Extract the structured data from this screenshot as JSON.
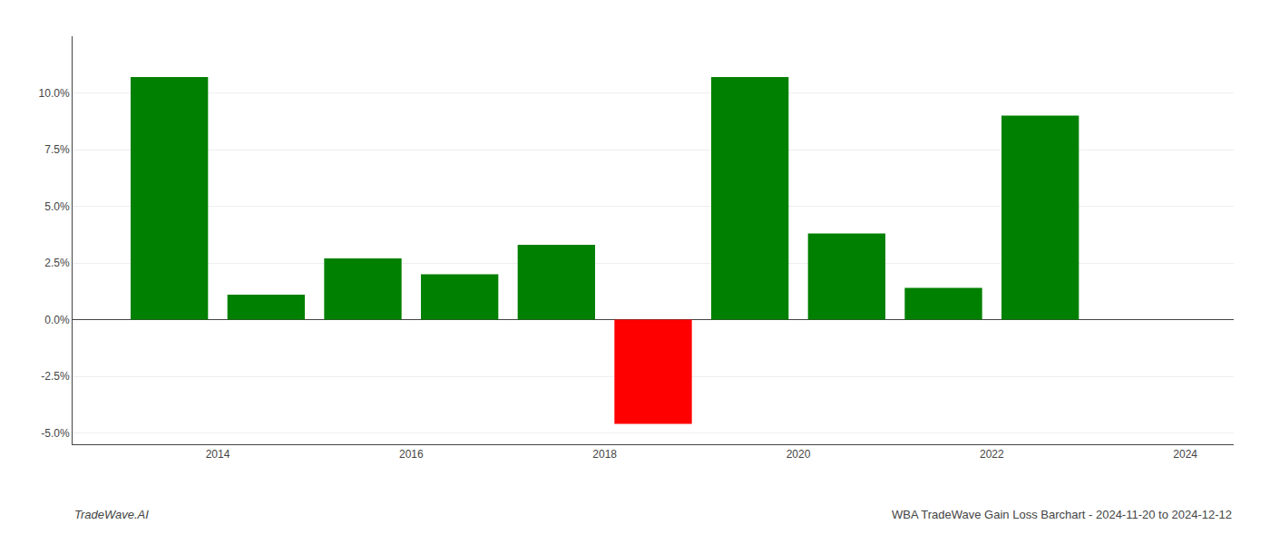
{
  "chart_data": {
    "type": "bar",
    "x": [
      2013.5,
      2014.5,
      2015.5,
      2016.5,
      2017.5,
      2018.5,
      2019.5,
      2020.5,
      2021.5,
      2022.5
    ],
    "values": [
      0.107,
      0.011,
      0.027,
      0.02,
      0.033,
      -0.046,
      0.107,
      0.038,
      0.014,
      0.09
    ],
    "colors": [
      "#008000",
      "#008000",
      "#008000",
      "#008000",
      "#008000",
      "#ff0000",
      "#008000",
      "#008000",
      "#008000",
      "#008000"
    ],
    "xlim": [
      2012.5,
      2024.5
    ],
    "xticks": [
      2014,
      2016,
      2018,
      2020,
      2022,
      2024
    ],
    "ylim": [
      -0.055,
      0.125
    ],
    "yticks": [
      {
        "value": -0.05,
        "label": "-5.0%"
      },
      {
        "value": -0.025,
        "label": "-2.5%"
      },
      {
        "value": 0.0,
        "label": "0.0%"
      },
      {
        "value": 0.025,
        "label": "2.5%"
      },
      {
        "value": 0.05,
        "label": "5.0%"
      },
      {
        "value": 0.075,
        "label": "7.5%"
      },
      {
        "value": 0.1,
        "label": "10.0%"
      }
    ],
    "grid": true,
    "annotations": [
      "TradeWave.AI",
      "WBA TradeWave Gain Loss Barchart - 2024-11-20 to 2024-12-12"
    ]
  }
}
